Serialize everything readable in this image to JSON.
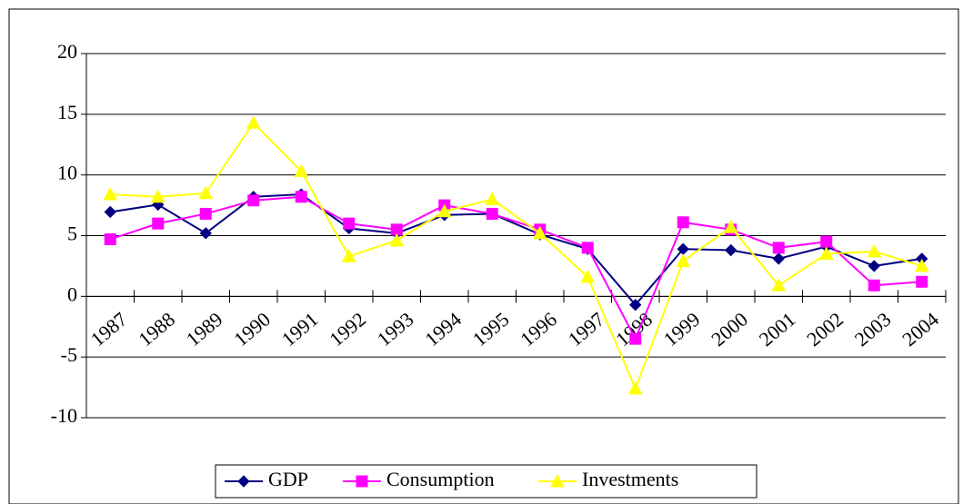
{
  "chart_data": {
    "type": "line",
    "categories": [
      "1987",
      "1988",
      "1989",
      "1990",
      "1991",
      "1992",
      "1993",
      "1994",
      "1995",
      "1996",
      "1997",
      "1998",
      "1999",
      "2000",
      "2001",
      "2002",
      "2003",
      "2004"
    ],
    "series": [
      {
        "name": "GDP",
        "color": "#000080",
        "marker": "diamond",
        "values": [
          6.95,
          7.55,
          5.2,
          8.2,
          8.4,
          5.6,
          5.2,
          6.7,
          6.8,
          5.1,
          3.9,
          -0.7,
          3.9,
          3.8,
          3.1,
          4.1,
          2.5,
          3.1
        ]
      },
      {
        "name": "Consumption",
        "color": "#ff00ff",
        "marker": "square",
        "values": [
          4.7,
          6.0,
          6.8,
          7.9,
          8.2,
          6.0,
          5.5,
          7.5,
          6.8,
          5.5,
          4.0,
          -3.5,
          6.1,
          5.5,
          4.0,
          4.5,
          0.9,
          1.2
        ]
      },
      {
        "name": "Investments",
        "color": "#ffff00",
        "marker": "triangle",
        "values": [
          8.4,
          8.2,
          8.5,
          14.3,
          10.3,
          3.3,
          4.6,
          7.0,
          8.0,
          5.2,
          1.6,
          -7.6,
          2.9,
          5.7,
          0.9,
          3.5,
          3.7,
          2.5
        ]
      }
    ],
    "ylim": [
      -10,
      20
    ],
    "yticks": [
      -10,
      -5,
      0,
      5,
      10,
      15,
      20
    ],
    "grid": true,
    "legend": "bottom"
  }
}
